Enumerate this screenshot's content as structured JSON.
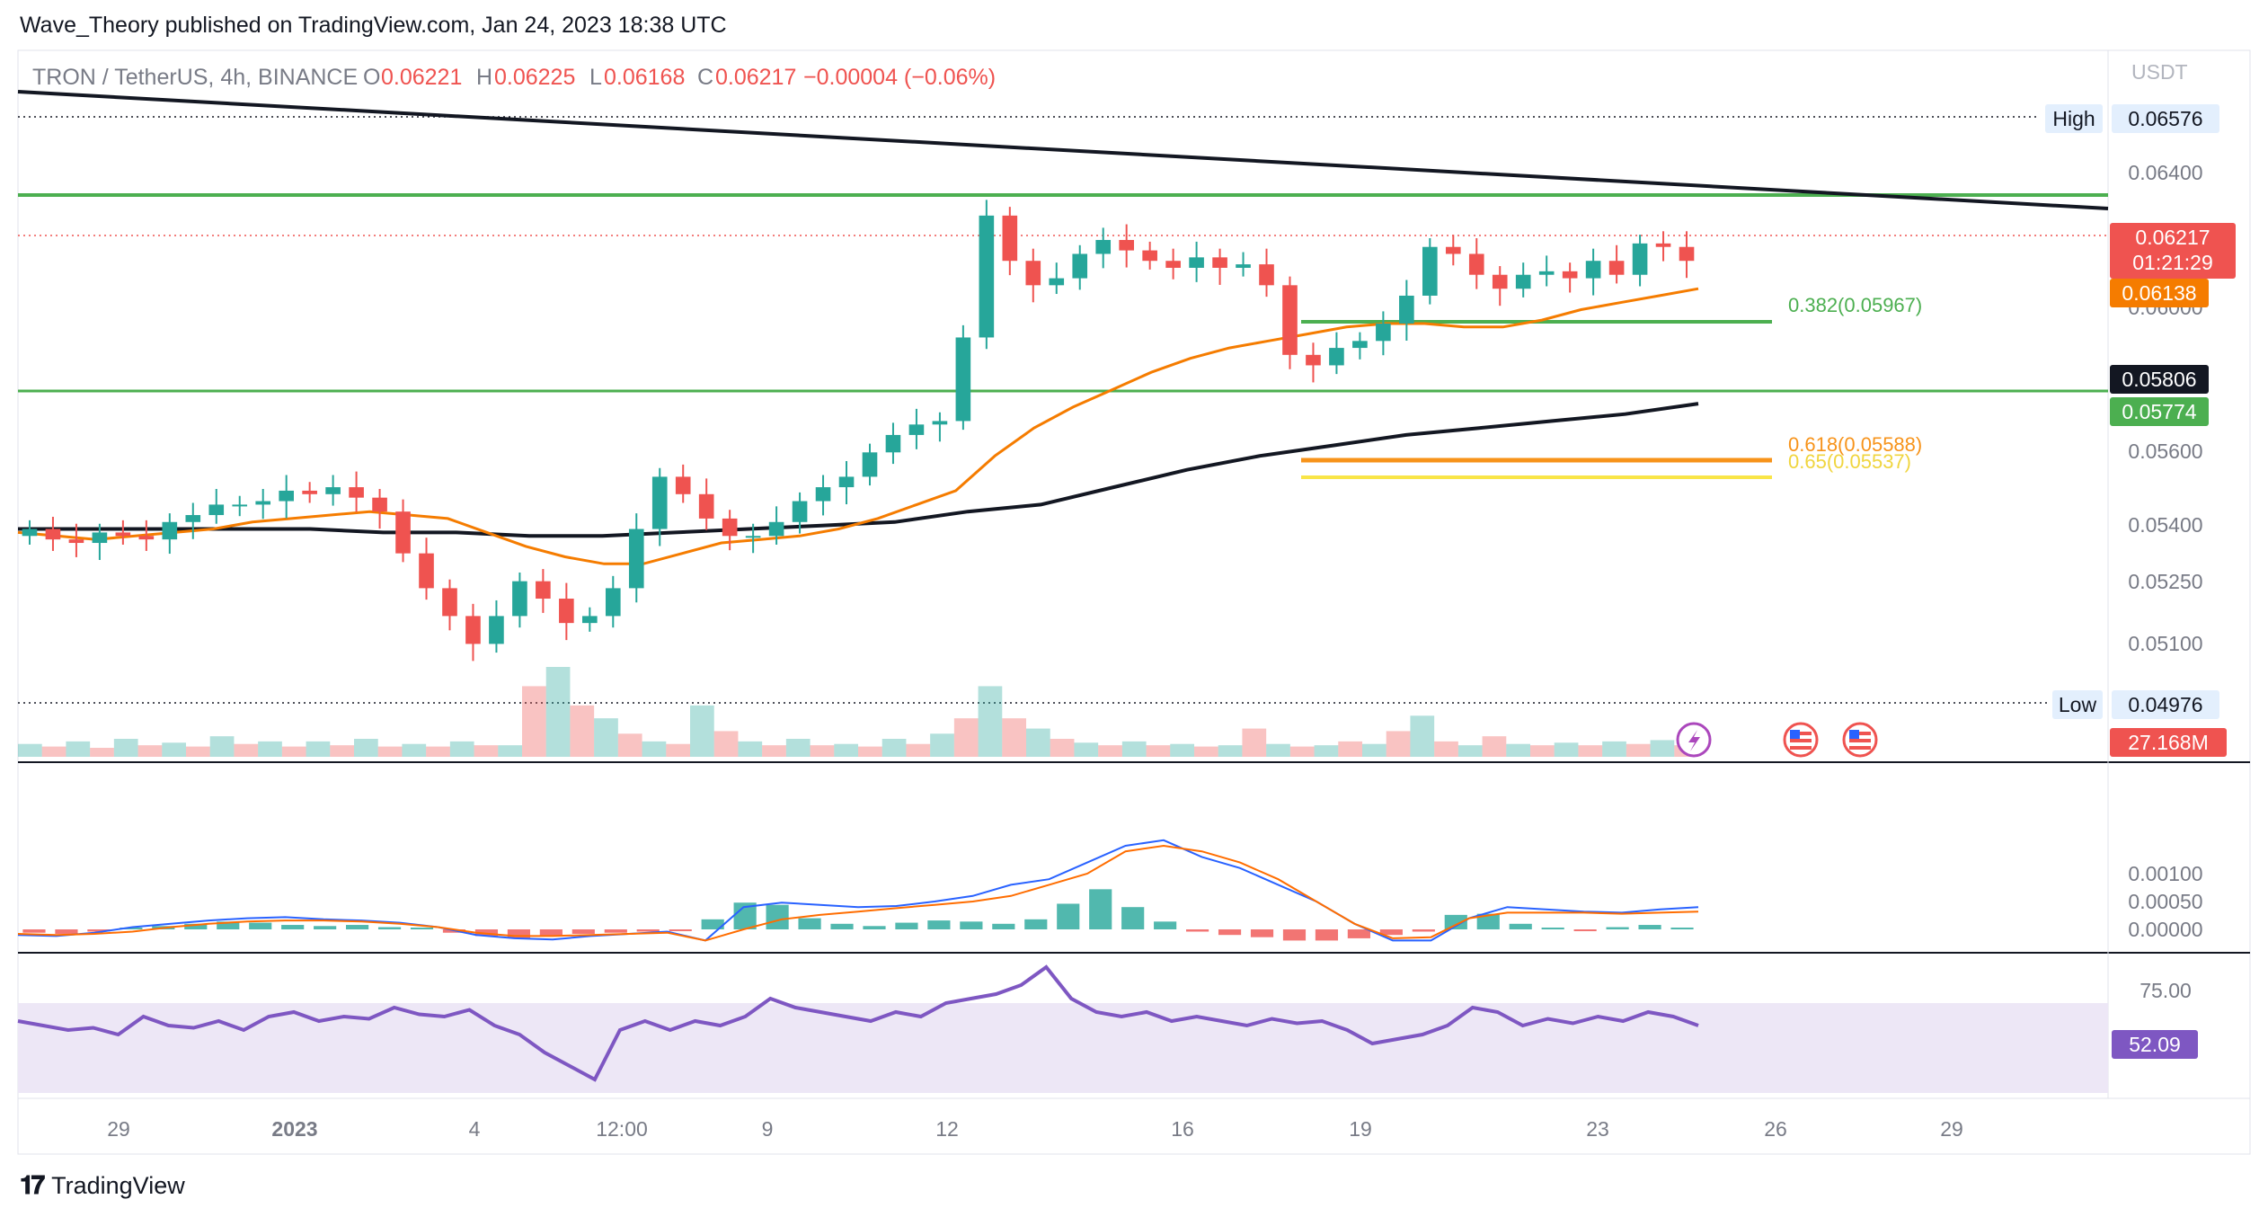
{
  "header": {
    "publish_line": "Wave_Theory published on TradingView.com, Jan 24, 2023 18:38 UTC"
  },
  "legend": {
    "symbol": "TRON / TetherUS, 4h, BINANCE",
    "o_label": "O",
    "o_value": "0.06221",
    "h_label": "H",
    "h_value": "0.06225",
    "l_label": "L",
    "l_value": "0.06168",
    "c_label": "C",
    "c_value": "0.06217",
    "change": "−0.00004 (−0.06%)"
  },
  "footer": {
    "brand": "TradingView"
  },
  "colors": {
    "up": "#26a69a",
    "down": "#ef5350",
    "ema_fast": "#f57c00",
    "ema_slow": "#131722",
    "support_green": "#4caf50",
    "fib_orange": "#f7931a",
    "fib_yellow": "#f9e547",
    "macd_line": "#2962ff",
    "signal_line": "#ff6d00",
    "rsi": "#7e57c2",
    "rsi_band": "#ede7f6"
  },
  "chart_data": {
    "type": "candlestick",
    "symbol": "TRON / TetherUS",
    "timeframe": "4h",
    "exchange": "BINANCE",
    "currency": "USDT",
    "x_ticks": [
      "29",
      "2023",
      "4",
      "12:00",
      "9",
      "12",
      "16",
      "19",
      "23",
      "26",
      "29"
    ],
    "y_ticks": [
      "0.06400",
      "0.06000",
      "0.05600",
      "0.05400",
      "0.05250",
      "0.05100"
    ],
    "ylim": [
      0.0493,
      0.0668
    ],
    "high_label": "High",
    "high_value": 0.06576,
    "low_label": "Low",
    "low_value": 0.04976,
    "price_badge": {
      "value": "0.06217",
      "countdown": "01:21:29"
    },
    "ema_badge": "0.06138",
    "ema200_badge": "0.05806",
    "support_badge": "0.05774",
    "volume_badge": "27.168M",
    "macd_ticks": [
      "0.00100",
      "0.00050",
      "0.00000"
    ],
    "rsi_ticks": [
      "75.00"
    ],
    "rsi_value": "52.09",
    "fib_levels": [
      {
        "label": "0.382(0.05967)",
        "value": 0.05967
      },
      {
        "label": "0.618(0.05588)",
        "value": 0.05588
      },
      {
        "label": "0.65(0.05537)",
        "value": 0.05537
      }
    ],
    "horizontal_levels": [
      0.0631,
      0.05774
    ],
    "trendline": {
      "from": 0.0665,
      "to": 0.0625
    },
    "close_path": [
      0.0545,
      0.0542,
      0.0541,
      0.0544,
      0.0543,
      0.0542,
      0.0547,
      0.0549,
      0.0552,
      0.0552,
      0.0553,
      0.0556,
      0.0555,
      0.0557,
      0.0554,
      0.055,
      0.0538,
      0.0528,
      0.052,
      0.0512,
      0.052,
      0.053,
      0.0525,
      0.0518,
      0.052,
      0.0528,
      0.0545,
      0.056,
      0.0555,
      0.0548,
      0.0543,
      0.0543,
      0.0547,
      0.0553,
      0.0557,
      0.056,
      0.0567,
      0.0572,
      0.0575,
      0.0576,
      0.06,
      0.0635,
      0.0622,
      0.0615,
      0.0617,
      0.0624,
      0.0628,
      0.0625,
      0.0622,
      0.062,
      0.0623,
      0.062,
      0.0621,
      0.0615,
      0.0595,
      0.0592,
      0.0597,
      0.0599,
      0.0604,
      0.0612,
      0.0626,
      0.0624,
      0.0618,
      0.0614,
      0.0618,
      0.0619,
      0.0617,
      0.0622,
      0.0618,
      0.0627,
      0.0626,
      0.0622
    ],
    "ema_fast_path": [
      0.0544,
      0.0543,
      0.0542,
      0.0543,
      0.0544,
      0.0545,
      0.0547,
      0.0548,
      0.0549,
      0.055,
      0.0549,
      0.0548,
      0.0544,
      0.054,
      0.0537,
      0.0535,
      0.0535,
      0.0538,
      0.0541,
      0.0542,
      0.0543,
      0.0545,
      0.0548,
      0.0552,
      0.0556,
      0.0566,
      0.0574,
      0.058,
      0.0585,
      0.059,
      0.0594,
      0.0597,
      0.0599,
      0.0601,
      0.0603,
      0.0604,
      0.0604,
      0.0603,
      0.0603,
      0.0605,
      0.0608,
      0.061,
      0.0612,
      0.0614
    ],
    "ema_slow_path": [
      0.0545,
      0.0545,
      0.0545,
      0.0545,
      0.0545,
      0.0544,
      0.0544,
      0.0543,
      0.0543,
      0.0544,
      0.0545,
      0.0546,
      0.0547,
      0.055,
      0.0552,
      0.0557,
      0.0562,
      0.0566,
      0.0569,
      0.0572,
      0.0574,
      0.0576,
      0.0578,
      0.0581
    ],
    "volume_path": [
      10,
      8,
      12,
      7,
      14,
      9,
      11,
      8,
      16,
      10,
      12,
      8,
      12,
      9,
      14,
      8,
      10,
      8,
      12,
      9,
      9,
      55,
      70,
      40,
      30,
      18,
      12,
      10,
      40,
      20,
      12,
      9,
      14,
      9,
      10,
      8,
      14,
      10,
      18,
      30,
      55,
      30,
      22,
      14,
      11,
      9,
      12,
      9,
      10,
      8,
      9,
      22,
      10,
      8,
      9,
      12,
      10,
      20,
      32,
      12,
      9,
      16,
      10,
      9,
      11,
      9,
      12,
      10,
      13,
      9
    ],
    "macd_hist_path": [
      -6e-05,
      -8e-05,
      -4e-05,
      2e-05,
      6e-05,
      0.0001,
      0.00014,
      0.00012,
      8e-05,
      6e-05,
      8e-05,
      4e-05,
      1e-05,
      -6e-05,
      -0.00012,
      -0.00016,
      -0.00012,
      -8e-05,
      -6e-05,
      -4e-05,
      -2e-05,
      0.00018,
      0.00048,
      0.00044,
      0.0002,
      0.0001,
      6e-05,
      0.00012,
      0.00016,
      0.00014,
      0.0001,
      0.00018,
      0.00046,
      0.00072,
      0.0004,
      0.00014,
      -4e-05,
      -0.0001,
      -0.00014,
      -0.0002,
      -0.0002,
      -0.00016,
      -0.0001,
      -4e-05,
      0.00026,
      0.00028,
      0.0001,
      2e-05,
      -1e-05,
      4e-05,
      8e-05,
      2e-05
    ],
    "macd_line_path": [
      -0.0001,
      -0.00012,
      -6e-05,
      4e-05,
      0.0001,
      0.00016,
      0.0002,
      0.00022,
      0.00018,
      0.00016,
      0.00012,
      4e-05,
      -0.0001,
      -0.00016,
      -0.00018,
      -0.00012,
      -8e-05,
      -4e-05,
      -0.0002,
      0.0004,
      0.00048,
      0.00044,
      0.0004,
      0.00042,
      0.0005,
      0.0006,
      0.0008,
      0.0009,
      0.0012,
      0.0015,
      0.0016,
      0.0013,
      0.0011,
      0.0008,
      0.0005,
      0.0001,
      -0.0002,
      -0.0002,
      0.0002,
      0.0004,
      0.00036,
      0.00032,
      0.0003,
      0.00036,
      0.0004
    ],
    "signal_line_path": [
      -8e-05,
      -0.0001,
      -8e-05,
      -4e-05,
      4e-05,
      0.0001,
      0.00014,
      0.00016,
      0.00016,
      0.00014,
      0.0001,
      4e-05,
      -6e-05,
      -0.00012,
      -0.00012,
      -0.0001,
      -8e-05,
      -6e-05,
      -0.0002,
      0.0,
      0.00018,
      0.00026,
      0.00032,
      0.00038,
      0.00044,
      0.0005,
      0.0006,
      0.0008,
      0.001,
      0.0014,
      0.0015,
      0.0014,
      0.0012,
      0.0009,
      0.0005,
      0.0001,
      -0.00016,
      -0.00014,
      0.0002,
      0.0003,
      0.0003,
      0.0003,
      0.00028,
      0.0003,
      0.00032
    ],
    "rsi_path": [
      62,
      60,
      58,
      59,
      56,
      64,
      60,
      59,
      62,
      58,
      64,
      66,
      62,
      64,
      63,
      68,
      65,
      64,
      67,
      60,
      56,
      48,
      42,
      36,
      58,
      62,
      58,
      62,
      60,
      64,
      72,
      68,
      66,
      64,
      62,
      66,
      64,
      70,
      72,
      74,
      78,
      86,
      72,
      66,
      64,
      66,
      62,
      64,
      62,
      60,
      63,
      61,
      62,
      58,
      52,
      54,
      56,
      60,
      68,
      66,
      60,
      63,
      61,
      64,
      62,
      66,
      64,
      60
    ]
  }
}
